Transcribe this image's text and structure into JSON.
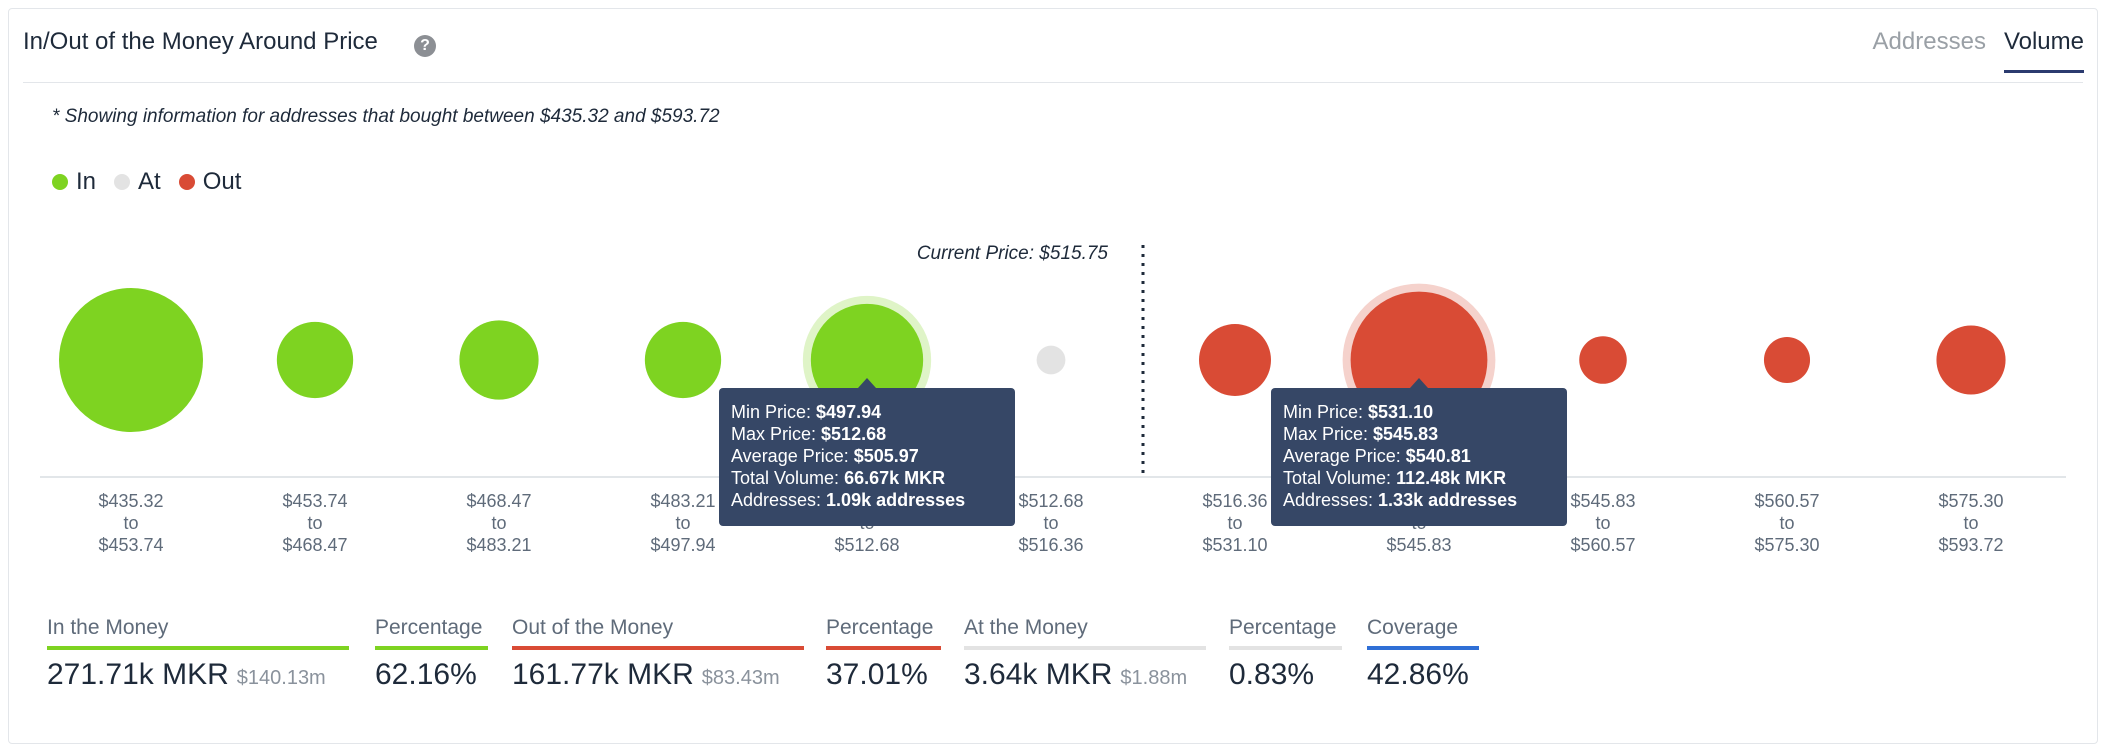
{
  "header": {
    "title": "In/Out of the Money Around Price",
    "help_icon": "question-circle-icon",
    "help_glyph": "?",
    "tabs": [
      {
        "label": "Addresses",
        "active": false
      },
      {
        "label": "Volume",
        "active": true
      }
    ]
  },
  "note": "* Showing information for addresses that bought between $435.32 and $593.72",
  "legend": [
    {
      "label": "In",
      "color": "#7ed321"
    },
    {
      "label": "At",
      "color": "#e3e3e3"
    },
    {
      "label": "Out",
      "color": "#d94b35"
    }
  ],
  "chart_data": {
    "type": "scatter",
    "current_price_label": "Current Price: $515.75",
    "buckets": [
      {
        "from": "$435.32",
        "to": "$453.74",
        "status": "in",
        "size": 1.0
      },
      {
        "from": "$453.74",
        "to": "$468.47",
        "status": "in",
        "size": 0.53
      },
      {
        "from": "$468.47",
        "to": "$483.21",
        "status": "in",
        "size": 0.55
      },
      {
        "from": "$483.21",
        "to": "$497.94",
        "status": "in",
        "size": 0.53
      },
      {
        "from": "$497.94",
        "to": "$512.68",
        "status": "in",
        "size": 0.78
      },
      {
        "from": "$512.68",
        "to": "$516.36",
        "status": "at",
        "size": 0.2
      },
      {
        "from": "$516.36",
        "to": "$531.10",
        "status": "out",
        "size": 0.5
      },
      {
        "from": "$531.10",
        "to": "$545.83",
        "status": "out",
        "size": 0.95
      },
      {
        "from": "$545.83",
        "to": "$560.57",
        "status": "out",
        "size": 0.33
      },
      {
        "from": "$560.57",
        "to": "$575.30",
        "status": "out",
        "size": 0.32
      },
      {
        "from": "$575.30",
        "to": "$593.72",
        "status": "out",
        "size": 0.48
      }
    ],
    "tick_connector": "to",
    "current_price_after_bucket": 5,
    "tooltips": [
      {
        "bucket": 4,
        "lines": [
          {
            "label": "Min Price: ",
            "value": "$497.94"
          },
          {
            "label": "Max Price: ",
            "value": "$512.68"
          },
          {
            "label": "Average Price: ",
            "value": "$505.97"
          },
          {
            "label": "Total Volume: ",
            "value": "66.67k MKR"
          },
          {
            "label": "Addresses: ",
            "value": "1.09k addresses"
          }
        ]
      },
      {
        "bucket": 7,
        "lines": [
          {
            "label": "Min Price: ",
            "value": "$531.10"
          },
          {
            "label": "Max Price: ",
            "value": "$545.83"
          },
          {
            "label": "Average Price: ",
            "value": "$540.81"
          },
          {
            "label": "Total Volume: ",
            "value": "112.48k MKR"
          },
          {
            "label": "Addresses: ",
            "value": "1.33k addresses"
          }
        ]
      }
    ],
    "colors": {
      "in": "#7ed321",
      "at": "#e3e3e3",
      "out": "#d94b35"
    }
  },
  "summary": [
    {
      "label": "In the Money",
      "value": "271.71k MKR",
      "sub": "$140.13m",
      "color": "#7ed321"
    },
    {
      "label": "Percentage",
      "value": "62.16%",
      "sub": "",
      "color": "#7ed321"
    },
    {
      "label": "Out of the Money",
      "value": "161.77k MKR",
      "sub": "$83.43m",
      "color": "#d94b35"
    },
    {
      "label": "Percentage",
      "value": "37.01%",
      "sub": "",
      "color": "#d94b35"
    },
    {
      "label": "At the Money",
      "value": "3.64k MKR",
      "sub": "$1.88m",
      "color": "#e3e3e3"
    },
    {
      "label": "Percentage",
      "value": "0.83%",
      "sub": "",
      "color": "#e3e3e3"
    },
    {
      "label": "Coverage",
      "value": "42.86%",
      "sub": "",
      "color": "#2f6fd6"
    }
  ]
}
